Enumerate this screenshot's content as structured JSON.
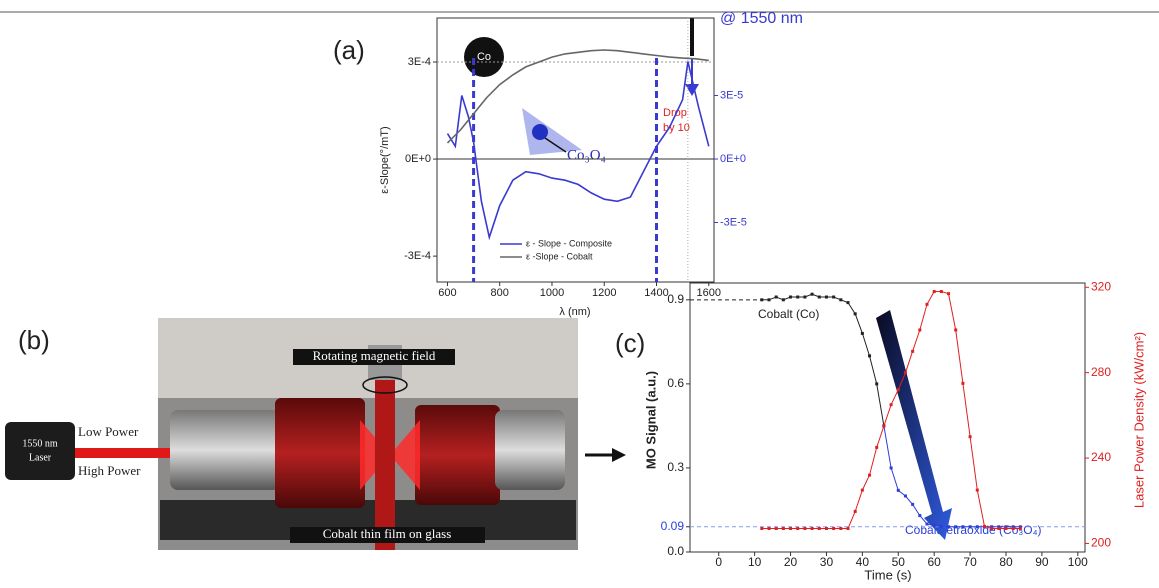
{
  "chart_data": [
    {
      "type": "line",
      "panel_label": "(a)",
      "xlabel": "λ (nm)",
      "ylabel": "ε-Slope(°/mT)",
      "xlim": [
        560,
        1620
      ],
      "xticks": [
        600,
        800,
        1000,
        1200,
        1400,
        1600
      ],
      "ylim": [
        -0.00038,
        0.000436
      ],
      "yticks": [
        {
          "value": -0.0003,
          "label": "-3E-4"
        },
        {
          "value": 0,
          "label": "0E+0"
        },
        {
          "value": 0.0003,
          "label": "3E-4"
        }
      ],
      "y2lim": [
        -5.81e-05,
        6.66e-05
      ],
      "y2ticks": [
        {
          "value": -3e-05,
          "label": "-3E-5"
        },
        {
          "value": 0,
          "label": "0E+0"
        },
        {
          "value": 3e-05,
          "label": "3E-5"
        }
      ],
      "series": [
        {
          "name": "ε - Slope - Composite",
          "color": "#3a3ad0",
          "axis": "y2",
          "x": [
            600,
            630,
            655,
            680,
            700,
            730,
            760,
            800,
            850,
            900,
            950,
            1000,
            1050,
            1100,
            1150,
            1200,
            1250,
            1300,
            1350,
            1400,
            1450,
            1500,
            1520,
            1560,
            1600
          ],
          "values": [
            1.2e-05,
            6e-06,
            3e-05,
            2e-05,
            8e-06,
            -2e-05,
            -3.7e-05,
            -2.2e-05,
            -1e-05,
            -6e-06,
            -7e-06,
            -9e-06,
            -1e-05,
            -1.2e-05,
            -1.6e-05,
            -1.9e-05,
            -2e-05,
            -1.8e-05,
            -6e-06,
            6e-06,
            1.5e-05,
            2.8e-05,
            4.6e-05,
            2.5e-05,
            6e-06
          ]
        },
        {
          "name": "ε -Slope - Cobalt",
          "color": "#666666",
          "x": [
            600,
            650,
            700,
            750,
            800,
            850,
            900,
            950,
            1000,
            1050,
            1100,
            1150,
            1200,
            1250,
            1300,
            1350,
            1400,
            1450,
            1500,
            1550,
            1600
          ],
          "values": [
            5e-05,
            9e-05,
            0.00014,
            0.00019,
            0.00023,
            0.00026,
            0.000285,
            0.0003,
            0.000315,
            0.000325,
            0.00033,
            0.000335,
            0.000337,
            0.000335,
            0.00033,
            0.000325,
            0.00032,
            0.000315,
            0.000312,
            0.00031,
            0.000305
          ]
        }
      ],
      "dashed_x": [
        700,
        1400
      ],
      "highlight_x": 1520,
      "annotations": {
        "top": "@ 1550 nm",
        "drop": [
          "Drop",
          "by 10"
        ],
        "co": "Co",
        "oxide": "Co₃O₄"
      }
    },
    {
      "type": "line",
      "panel_label": "(c)",
      "xlabel": "Time (s)",
      "ylabel": "MO Signal (a.u.)",
      "y2label": "Laser Power Density (kW/cm²)",
      "xlim": [
        -8,
        102
      ],
      "xticks": [
        0,
        10,
        20,
        30,
        40,
        50,
        60,
        70,
        80,
        90,
        100
      ],
      "ylim": [
        0,
        0.96
      ],
      "yticks": [
        {
          "value": 0,
          "label": "0.0"
        },
        0.09,
        0.3,
        0.6,
        0.9
      ],
      "y2lim": [
        196,
        322
      ],
      "y2ticks": [
        200,
        240,
        280,
        320
      ],
      "x": [
        12,
        14,
        16,
        18,
        20,
        22,
        24,
        26,
        28,
        30,
        32,
        34,
        36,
        38,
        40,
        42,
        44,
        46,
        48,
        50,
        52,
        54,
        56,
        58,
        60,
        62,
        64,
        66,
        68,
        70,
        72,
        74,
        76,
        78,
        80,
        82,
        84
      ],
      "series": [
        {
          "color": "#222222",
          "values": [
            0.9,
            0.9,
            0.91,
            0.9,
            0.91,
            0.91,
            0.91,
            0.92,
            0.91,
            0.91,
            0.91,
            0.9,
            0.89,
            0.85,
            0.78,
            0.7,
            0.6,
            0.45,
            null,
            null,
            null,
            null,
            null,
            null,
            null,
            null,
            null,
            null,
            null,
            null,
            null,
            null,
            null,
            null,
            null,
            null,
            null
          ]
        },
        {
          "color": "#2b3fd6",
          "values": [
            null,
            null,
            null,
            null,
            null,
            null,
            null,
            null,
            null,
            null,
            null,
            null,
            null,
            null,
            null,
            null,
            null,
            0.45,
            0.3,
            0.22,
            0.2,
            0.17,
            0.13,
            0.1,
            0.095,
            0.09,
            0.09,
            0.09,
            0.09,
            0.09,
            0.09,
            0.09,
            0.09,
            0.09,
            0.09,
            0.09,
            0.09
          ]
        },
        {
          "color": "#e02020",
          "axis": "y2",
          "values": [
            207,
            207,
            207,
            207,
            207,
            207,
            207,
            207,
            207,
            207,
            207,
            207,
            207,
            215,
            225,
            232,
            245,
            255,
            265,
            272,
            280,
            290,
            300,
            312,
            318,
            318,
            317,
            300,
            275,
            250,
            225,
            208,
            207,
            207,
            207,
            207,
            207
          ]
        }
      ],
      "hlines": [
        0.9,
        0.09
      ],
      "annotations": {
        "co": "Cobalt (Co)",
        "oxide": "Cobalt tetraoxide (Co₃O₄)"
      }
    }
  ],
  "photo": {
    "panel_label": "(b)",
    "laser": [
      "1550 nm",
      "Laser"
    ],
    "low": "Low Power",
    "high": "High Power",
    "field": "Rotating magnetic field",
    "film": "Cobalt thin film on glass"
  }
}
